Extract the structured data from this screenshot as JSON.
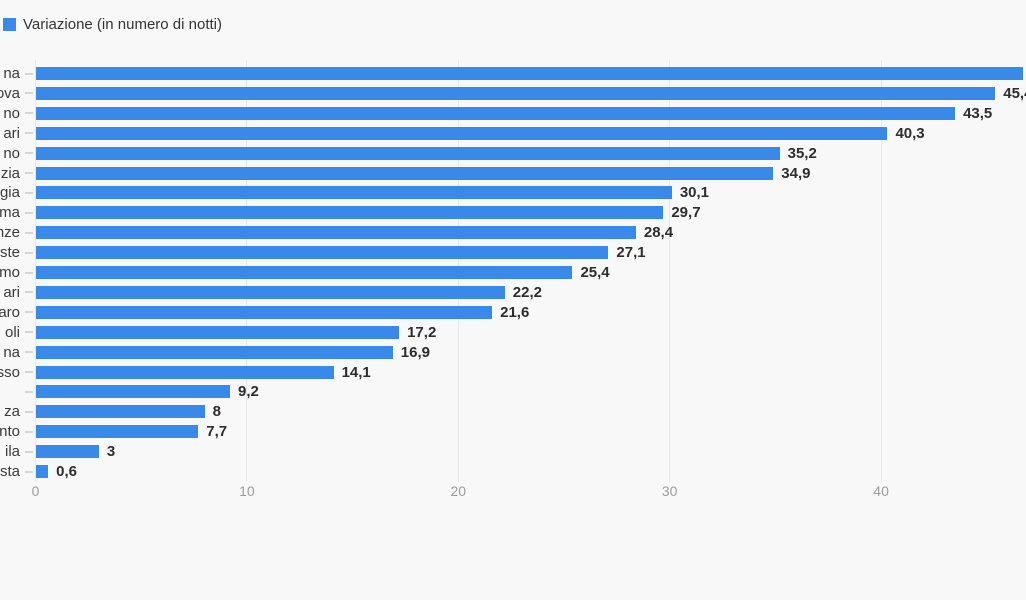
{
  "legend": {
    "label": "Variazione (in numero di notti)",
    "swatch_color": "#3989e8"
  },
  "chart_data": {
    "type": "bar",
    "orientation": "horizontal",
    "title": "",
    "xlabel": "",
    "ylabel": "",
    "legend_position": "top-left",
    "grid": true,
    "series_name": "Variazione (in numero di notti)",
    "categories": [
      "na",
      "ova",
      "no",
      "ari",
      "no",
      "zia",
      "gia",
      "ma",
      "nze",
      "ste",
      "mo",
      "ari",
      "aro",
      "oli",
      "na",
      "sso",
      "",
      "za",
      "nto",
      "ila",
      "sta"
    ],
    "values": [
      46.7,
      45.4,
      43.5,
      40.3,
      35.2,
      34.9,
      30.1,
      29.7,
      28.4,
      27.1,
      25.4,
      22.2,
      21.6,
      17.2,
      16.9,
      14.1,
      9.2,
      8,
      7.7,
      3,
      0.6
    ],
    "value_labels": [
      "",
      "45,4",
      "43,5",
      "40,3",
      "35,2",
      "34,9",
      "30,1",
      "29,7",
      "28,4",
      "27,1",
      "25,4",
      "22,2",
      "21,6",
      "17,2",
      "16,9",
      "14,1",
      "9,2",
      "8",
      "7,7",
      "3",
      "0,6"
    ],
    "x_ticks": [
      0,
      10,
      20,
      30,
      40
    ],
    "x_tick_labels": [
      "0",
      "10",
      "20",
      "30",
      "40"
    ],
    "xlim": [
      0,
      46.9
    ],
    "bar_color": "#3989e8",
    "grid_color": "#e8e8e8",
    "value_label_color": "#2d2d2d",
    "category_label_color": "#3a3a3a",
    "axis_label_color": "#9b9b9b"
  }
}
